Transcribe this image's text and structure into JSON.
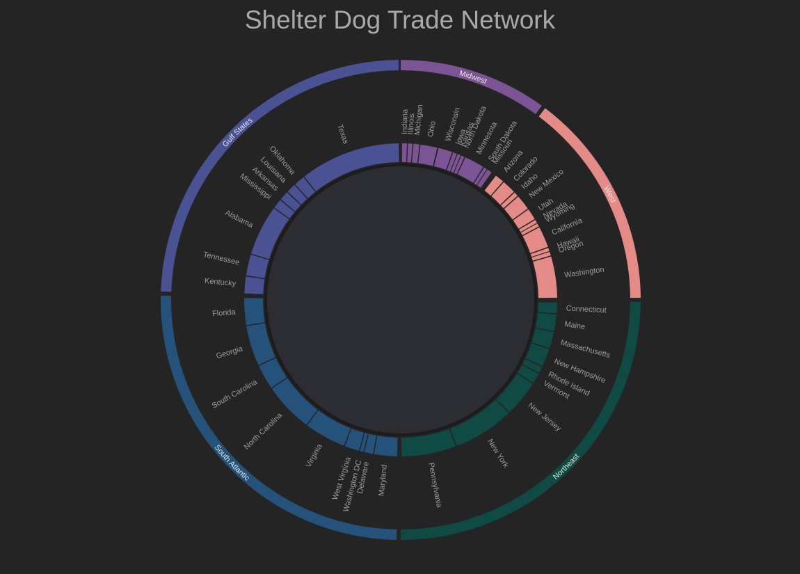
{
  "title": "Shelter Dog Trade Network",
  "regions": [
    {
      "name": "Midwest",
      "color": "#7c5496",
      "start": 0,
      "end": 36,
      "states": [
        {
          "name": "Indiana",
          "start": 0.5,
          "end": 2.3
        },
        {
          "name": "Illinois",
          "start": 2.7,
          "end": 4.3
        },
        {
          "name": "Michigan",
          "start": 4.7,
          "end": 6.9
        },
        {
          "name": "Ohio",
          "start": 7.3,
          "end": 13.5
        },
        {
          "name": "Wisconsin",
          "start": 14.0,
          "end": 19.2
        },
        {
          "name": "Iowa",
          "start": 19.6,
          "end": 21.0
        },
        {
          "name": "Kansas",
          "start": 21.3,
          "end": 22.5
        },
        {
          "name": "North Dakota",
          "start": 22.8,
          "end": 24.0
        },
        {
          "name": "Minnesota",
          "start": 24.4,
          "end": 31.8
        },
        {
          "name": "South Dakota",
          "start": 32.2,
          "end": 33.4
        },
        {
          "name": "Missouri",
          "start": 33.7,
          "end": 35.5
        }
      ]
    },
    {
      "name": "West",
      "color": "#e48b87",
      "start": 37,
      "end": 89.5,
      "states": [
        {
          "name": "Arizona",
          "start": 37.5,
          "end": 40.8
        },
        {
          "name": "Colorado",
          "start": 41.2,
          "end": 46.3
        },
        {
          "name": "Idaho",
          "start": 46.7,
          "end": 48.3
        },
        {
          "name": "New Mexico",
          "start": 48.7,
          "end": 54.3
        },
        {
          "name": "Utah",
          "start": 54.7,
          "end": 58.9
        },
        {
          "name": "Nevada",
          "start": 59.3,
          "end": 60.5
        },
        {
          "name": "Wyoming",
          "start": 60.8,
          "end": 62.0
        },
        {
          "name": "California",
          "start": 62.4,
          "end": 70.2
        },
        {
          "name": "Hawaii",
          "start": 70.6,
          "end": 71.8
        },
        {
          "name": "Oregon",
          "start": 72.1,
          "end": 73.5
        },
        {
          "name": "Washington",
          "start": 73.9,
          "end": 89.2
        }
      ]
    },
    {
      "name": "Northeast",
      "color": "#0f4a44",
      "start": 90.5,
      "end": 180,
      "states": [
        {
          "name": "Connecticut",
          "start": 91.0,
          "end": 95.0
        },
        {
          "name": "Maine",
          "start": 95.4,
          "end": 101.5
        },
        {
          "name": "Massachusetts",
          "start": 101.9,
          "end": 108.0
        },
        {
          "name": "New Hampshire",
          "start": 108.4,
          "end": 115.0
        },
        {
          "name": "Rhode Island",
          "start": 115.4,
          "end": 117.8
        },
        {
          "name": "Vermont",
          "start": 118.2,
          "end": 122.0
        },
        {
          "name": "New Jersey",
          "start": 122.4,
          "end": 136.0
        },
        {
          "name": "New York",
          "start": 136.4,
          "end": 159.0
        },
        {
          "name": "Pennsylvania",
          "start": 159.4,
          "end": 179.7
        }
      ]
    },
    {
      "name": "South Atlantic",
      "color": "#24527a",
      "start": 181,
      "end": 271,
      "states": [
        {
          "name": "Maryland",
          "start": 181.3,
          "end": 189.8
        },
        {
          "name": "Delaware",
          "start": 190.2,
          "end": 193.4
        },
        {
          "name": "Washington DC",
          "start": 193.8,
          "end": 195.1
        },
        {
          "name": "West Virginia",
          "start": 195.5,
          "end": 200.9
        },
        {
          "name": "Virginia",
          "start": 201.3,
          "end": 216.7
        },
        {
          "name": "North Carolina",
          "start": 217.1,
          "end": 235.4
        },
        {
          "name": "South Carolina",
          "start": 235.8,
          "end": 245.0
        },
        {
          "name": "Georgia",
          "start": 245.4,
          "end": 260.3
        },
        {
          "name": "Florida",
          "start": 260.7,
          "end": 270.7
        }
      ]
    },
    {
      "name": "Gulf States",
      "color": "#4a5294",
      "start": 272,
      "end": 359.5,
      "states": [
        {
          "name": "Kentucky",
          "start": 272.4,
          "end": 278.6
        },
        {
          "name": "Tennessee",
          "start": 279.0,
          "end": 286.8
        },
        {
          "name": "Alabama",
          "start": 287.2,
          "end": 305.8
        },
        {
          "name": "Mississippi",
          "start": 306.2,
          "end": 309.6
        },
        {
          "name": "Arkansas",
          "start": 310.0,
          "end": 313.4
        },
        {
          "name": "Louisiana",
          "start": 313.8,
          "end": 317.2
        },
        {
          "name": "Oklahoma",
          "start": 317.6,
          "end": 321.6
        },
        {
          "name": "Texas",
          "start": 322.0,
          "end": 359.3
        }
      ]
    }
  ]
}
